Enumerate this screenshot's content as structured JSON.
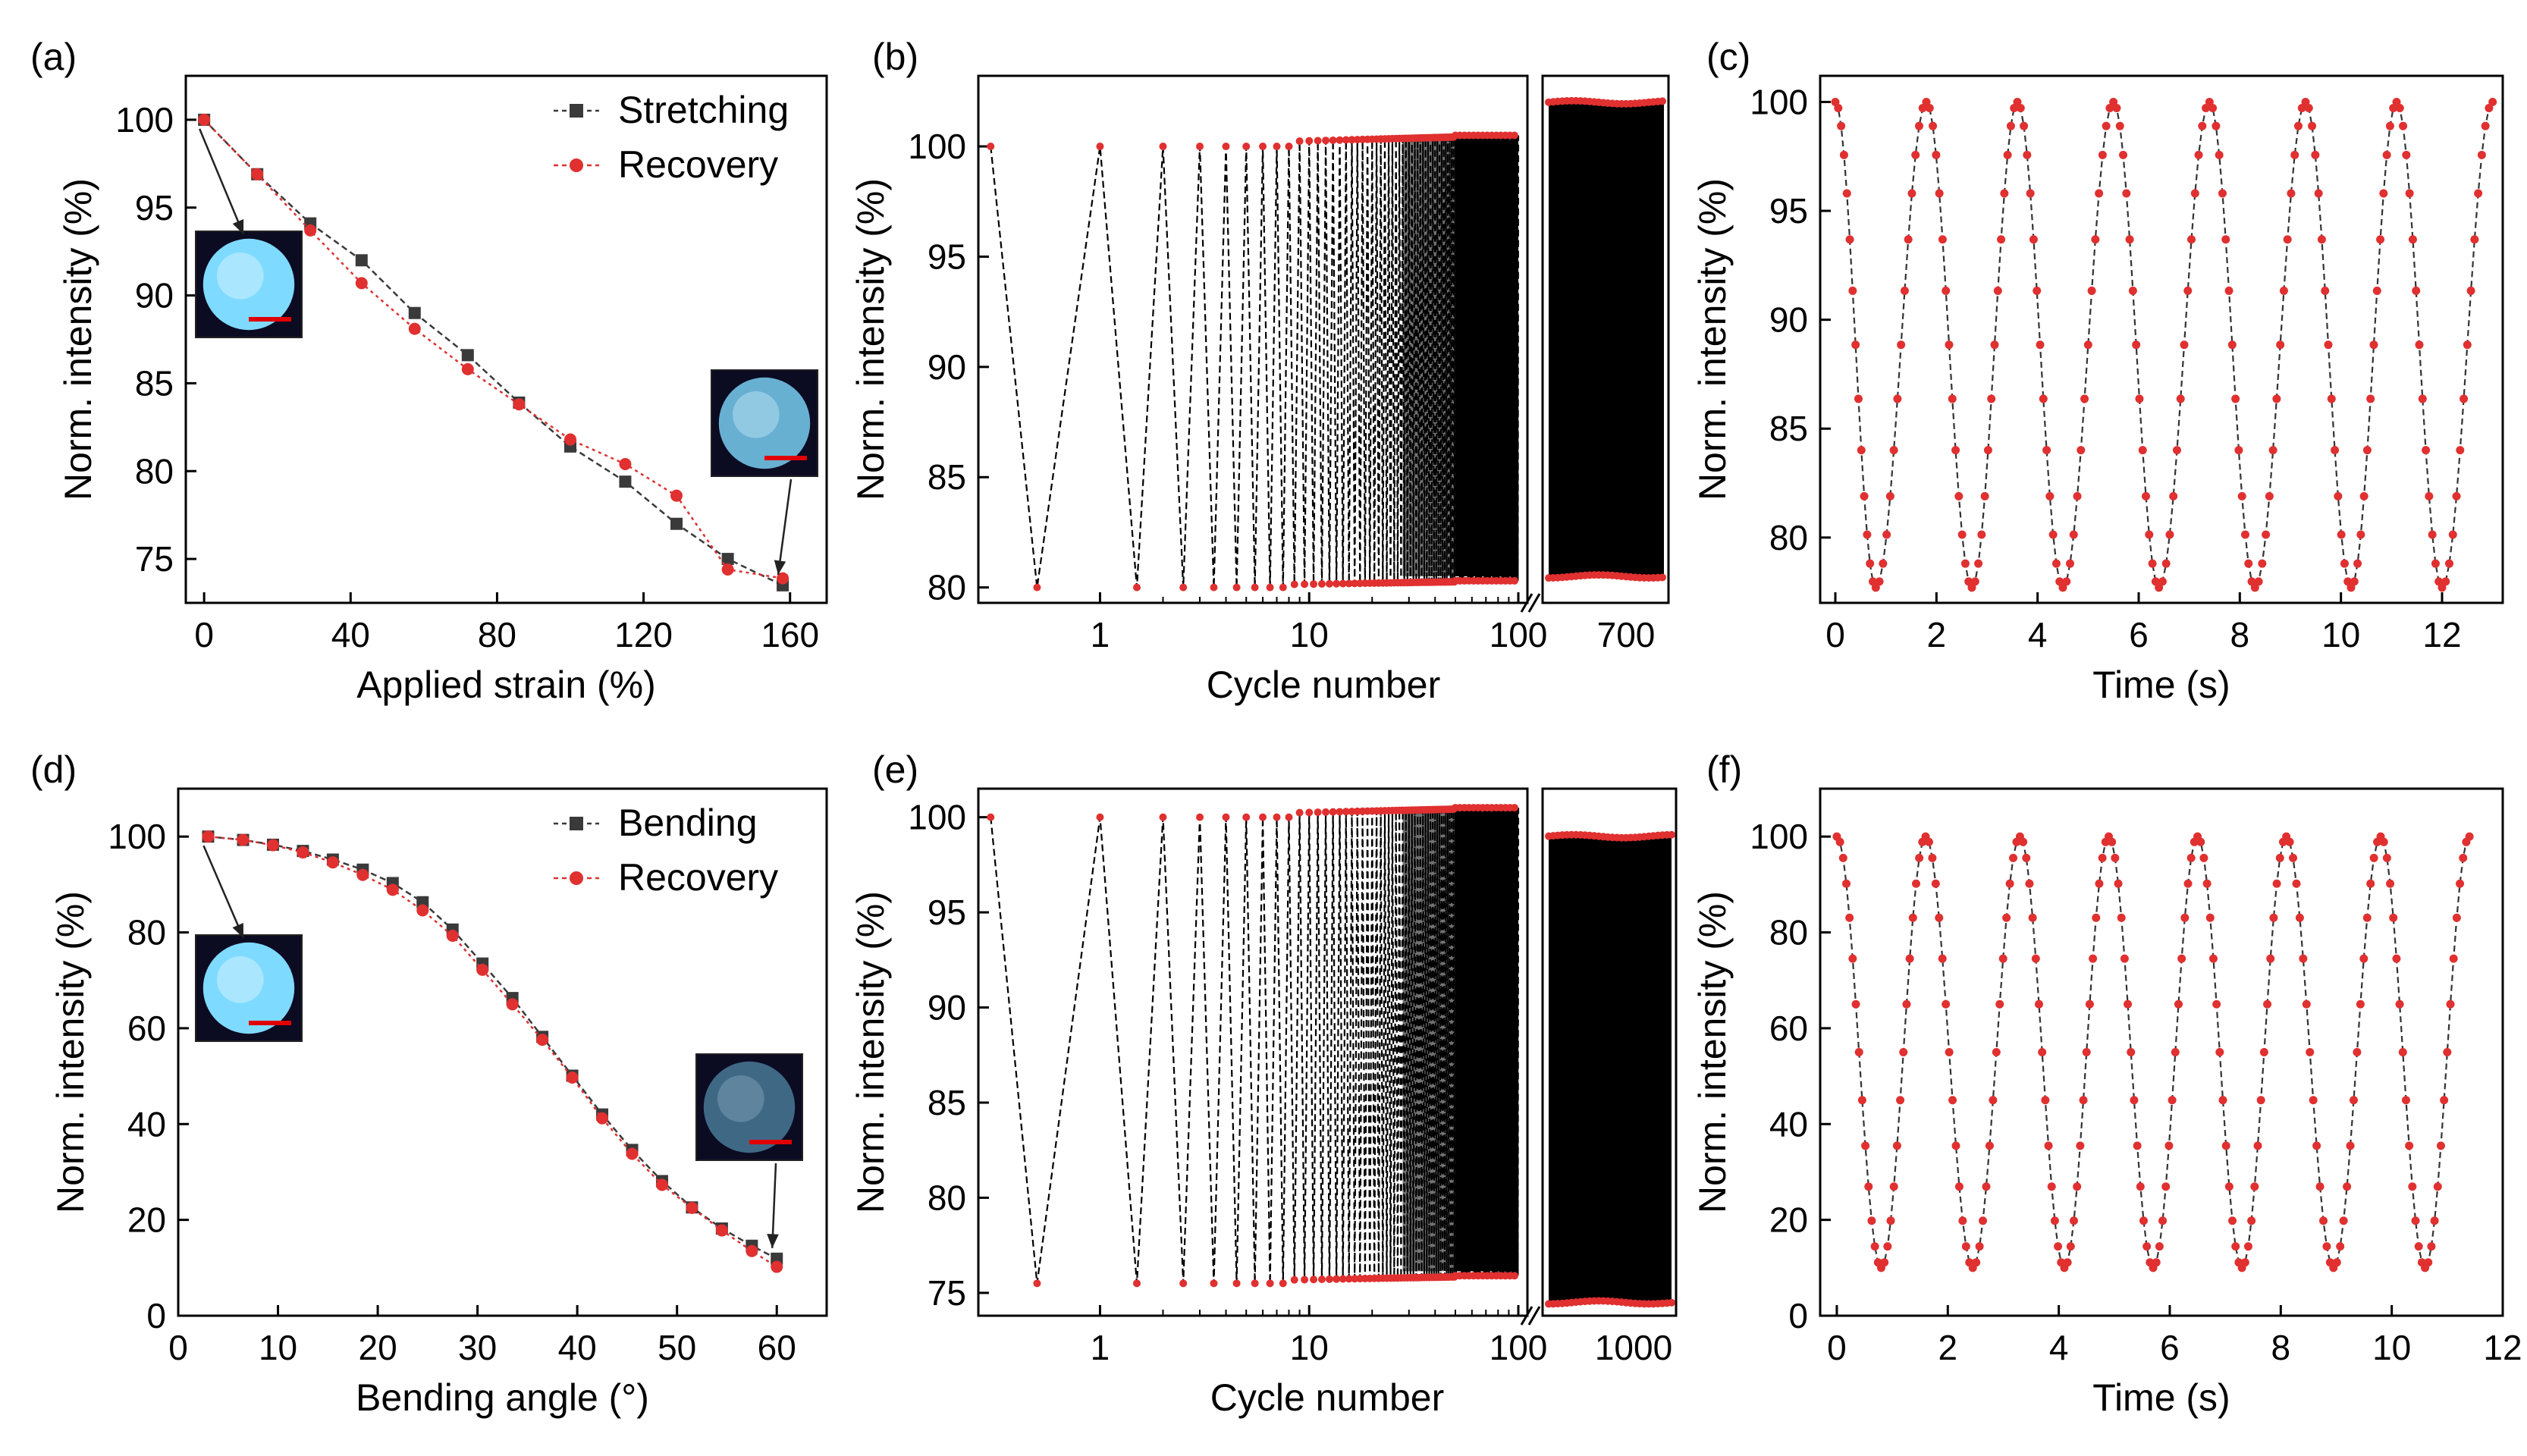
{
  "colors": {
    "stretch": "#3a3a3a",
    "recovery": "#e03030",
    "dark": "#000000",
    "inset_bg": "#0b0b22",
    "inset_glow": "#7fdaff",
    "scale_bar": "#e00000"
  },
  "panels": [
    {
      "id": "a",
      "label": "(a)",
      "type": "line",
      "xlabel": "Applied strain (%)",
      "ylabel": "Norm. intensity (%)",
      "xlim": [
        -5,
        170
      ],
      "ylim": [
        72.5,
        102.5
      ],
      "xticks": [
        0,
        40,
        80,
        120,
        160
      ],
      "yticks": [
        75,
        80,
        85,
        90,
        95,
        100
      ],
      "legend_position": "top-right",
      "series": [
        {
          "name": "Stretching",
          "marker": "square",
          "color": "#3a3a3a",
          "x": [
            0,
            14.5,
            29,
            43,
            57.5,
            72,
            86,
            100,
            115,
            129,
            143,
            158
          ],
          "y": [
            100,
            96.9,
            94.1,
            92.0,
            89.0,
            86.6,
            83.9,
            81.4,
            79.4,
            77.0,
            75.0,
            73.5
          ]
        },
        {
          "name": "Recovery",
          "marker": "circle",
          "color": "#e03030",
          "x": [
            0,
            14.5,
            29,
            43,
            57.5,
            72,
            86,
            100,
            115,
            129,
            143,
            158
          ],
          "y": [
            100,
            96.9,
            93.7,
            90.7,
            88.1,
            85.8,
            83.8,
            81.8,
            80.4,
            78.6,
            74.4,
            73.9
          ]
        }
      ],
      "insets": [
        {
          "brightness": 1.0
        },
        {
          "brightness": 0.8
        }
      ]
    },
    {
      "id": "b",
      "label": "(b)",
      "type": "cycle",
      "xlabel": "Cycle number",
      "ylabel": "Norm. intensity (%)",
      "ylim": [
        79.3,
        103.2
      ],
      "yticks": [
        80,
        85,
        90,
        95,
        100
      ],
      "xtick_labels_left": [
        "1",
        "10",
        "100"
      ],
      "xtick_labels_right": [
        "700"
      ],
      "cycle_data": {
        "high": 100,
        "low": 80,
        "high_right": 102,
        "low_right": 80.5,
        "last_cycle": 700,
        "high_max": 100.5,
        "low_max": 80.3
      }
    },
    {
      "id": "c",
      "label": "(c)",
      "type": "wave",
      "xlabel": "Time (s)",
      "ylabel": "Norm. intensity (%)",
      "xlim": [
        -0.3,
        13.2
      ],
      "ylim": [
        77.0,
        101.2
      ],
      "xticks": [
        0,
        2,
        4,
        6,
        8,
        10,
        12
      ],
      "yticks": [
        80,
        85,
        90,
        95,
        100
      ],
      "wave_data": {
        "max": 100,
        "min": 77.7,
        "peaks_s": [
          0,
          1.8,
          3.6,
          5.5,
          7.4,
          9.3,
          11.1,
          13.0
        ],
        "troughs_s": [
          0.8,
          2.7,
          4.5,
          6.4,
          8.3,
          10.2,
          12.0
        ]
      }
    },
    {
      "id": "d",
      "label": "(d)",
      "type": "line",
      "xlabel": "Bending angle (°)",
      "ylabel": "Norm. intensity (%)",
      "xlim": [
        0,
        65
      ],
      "ylim": [
        0,
        110
      ],
      "xticks": [
        0,
        10,
        20,
        30,
        40,
        50,
        60
      ],
      "yticks": [
        0,
        20,
        40,
        60,
        80,
        100
      ],
      "legend_position": "top-right",
      "series": [
        {
          "name": "Bending",
          "marker": "square",
          "color": "#3a3a3a",
          "x": [
            3,
            6.5,
            9.5,
            12.5,
            15.5,
            18.5,
            21.5,
            24.5,
            27.5,
            30.5,
            33.5,
            36.5,
            39.5,
            42.5,
            45.5,
            48.5,
            51.5,
            54.5,
            57.5,
            60
          ],
          "y": [
            100,
            99.3,
            98.3,
            97.0,
            95.2,
            93.1,
            90.3,
            86.3,
            80.6,
            73.5,
            66.3,
            58.2,
            50.1,
            42.0,
            34.6,
            28.1,
            22.6,
            18.2,
            14.6,
            11.9
          ]
        },
        {
          "name": "Recovery",
          "marker": "circle",
          "color": "#e03030",
          "x": [
            3,
            6.5,
            9.5,
            12.5,
            15.5,
            18.5,
            21.5,
            24.5,
            27.5,
            30.5,
            33.5,
            36.5,
            39.5,
            42.5,
            45.5,
            48.5,
            51.5,
            54.5,
            57.5,
            60
          ],
          "y": [
            100,
            99.3,
            98.2,
            96.7,
            94.6,
            92.0,
            88.9,
            84.6,
            79.3,
            72.2,
            65.0,
            57.6,
            49.7,
            41.2,
            33.8,
            27.3,
            22.5,
            17.8,
            13.5,
            10.2
          ]
        }
      ],
      "insets": [
        {
          "brightness": 1.0
        },
        {
          "brightness": 0.45
        }
      ]
    },
    {
      "id": "e",
      "label": "(e)",
      "type": "cycle",
      "xlabel": "Cycle number",
      "ylabel": "Norm. intensity (%)",
      "ylim": [
        73.8,
        101.5
      ],
      "yticks": [
        75,
        80,
        85,
        90,
        95,
        100
      ],
      "xtick_labels_left": [
        "1",
        "10",
        "100"
      ],
      "xtick_labels_right": [
        "1000"
      ],
      "cycle_data": {
        "high": 100,
        "low": 75.5,
        "high_right": 99,
        "low_right": 74.5,
        "last_cycle": 1000,
        "high_max": 100.5,
        "low_max": 75.9
      }
    },
    {
      "id": "f",
      "label": "(f)",
      "type": "wave",
      "xlabel": "Time (s)",
      "ylabel": "Norm. intensity (%)",
      "xlim": [
        -0.3,
        12.0
      ],
      "ylim": [
        0,
        110
      ],
      "xticks": [
        0,
        2,
        4,
        6,
        8,
        10,
        12
      ],
      "yticks": [
        0,
        20,
        40,
        60,
        80,
        100
      ],
      "wave_data": {
        "max": 100,
        "min": 10,
        "peaks_s": [
          0,
          1.6,
          3.3,
          4.9,
          6.5,
          8.1,
          9.8,
          11.4
        ],
        "troughs_s": [
          0.8,
          2.45,
          4.1,
          5.7,
          7.3,
          8.95,
          10.6
        ]
      }
    }
  ]
}
